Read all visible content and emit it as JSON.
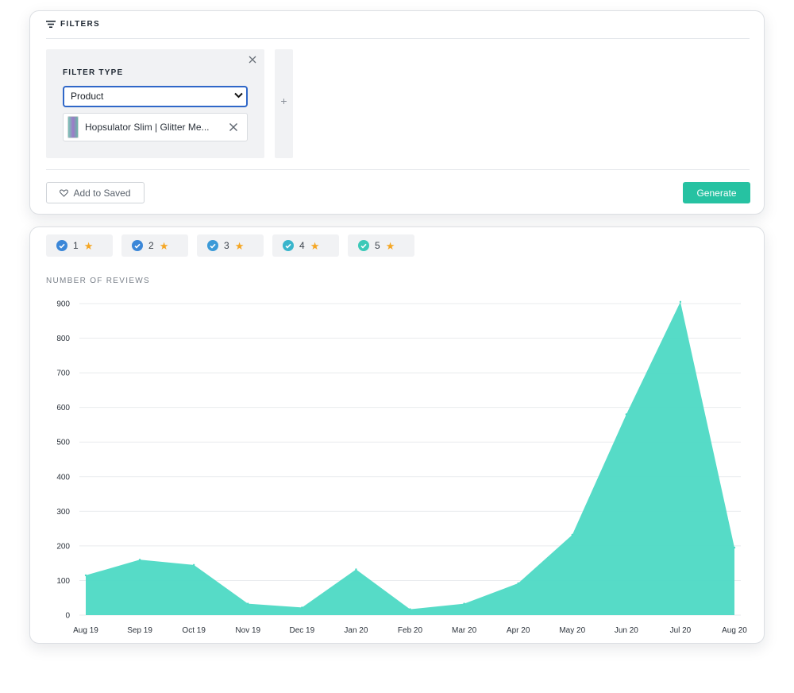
{
  "filters": {
    "title": "FILTERS",
    "filter_type_label": "FILTER TYPE",
    "selected_type": "Product",
    "product_chip": "Hopsulator Slim | Glitter Me...",
    "add_filter_symbol": "+",
    "add_to_saved_label": "Add to Saved",
    "generate_label": "Generate",
    "generate_color": "#26c2a2"
  },
  "ratings": [
    {
      "label": "1",
      "check_color": "#3b87d8"
    },
    {
      "label": "2",
      "check_color": "#3b87d8"
    },
    {
      "label": "3",
      "check_color": "#3b9ad8"
    },
    {
      "label": "4",
      "check_color": "#39b5cc"
    },
    {
      "label": "5",
      "check_color": "#3cc9b8"
    }
  ],
  "chart_data": {
    "type": "area",
    "ylabel": "NUMBER OF REVIEWS",
    "xlabel": "",
    "ylim": [
      0,
      900
    ],
    "yticks": [
      0,
      100,
      200,
      300,
      400,
      500,
      600,
      700,
      800,
      900
    ],
    "grid": true,
    "categories": [
      "Aug 19",
      "Sep 19",
      "Oct 19",
      "Nov 19",
      "Dec 19",
      "Jan 20",
      "Feb 20",
      "Mar 20",
      "Apr 20",
      "May 20",
      "Jun 20",
      "Jul 20",
      "Aug 20"
    ],
    "series": [
      {
        "name": "Reviews",
        "color": "#4dd9c4",
        "values": [
          115,
          160,
          145,
          33,
          22,
          132,
          17,
          33,
          92,
          232,
          580,
          905,
          195
        ]
      }
    ]
  }
}
